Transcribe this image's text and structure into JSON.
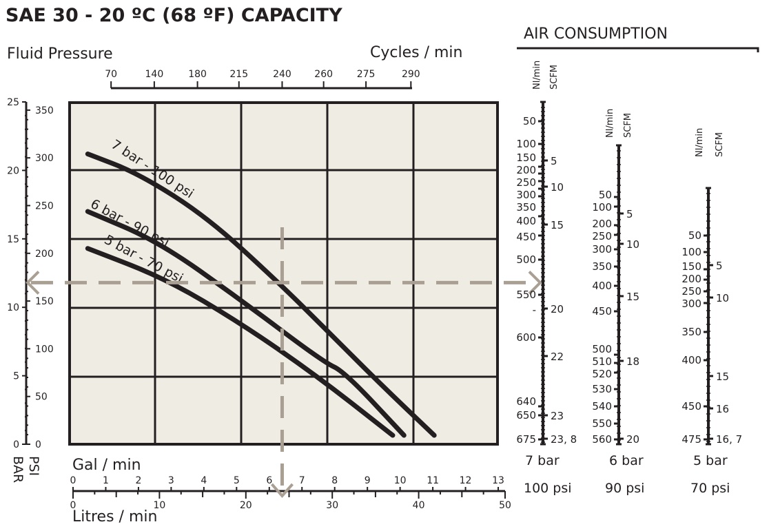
{
  "chart_data": {
    "type": "line",
    "title": "SAE 30 - 20 ºC (68 ºF) CAPACITY",
    "ylabel": "Fluid Pressure",
    "ylabel_units": [
      "BAR",
      "PSI"
    ],
    "x2label": "Cycles / min",
    "xlabel_gal": "Gal / min",
    "xlabel_litres": "Litres / min",
    "ylim_bar": [
      0,
      25
    ],
    "xlim_litres": [
      0,
      50
    ],
    "grid": true,
    "bar_ticks": [
      "0",
      "5",
      "10",
      "15",
      "20",
      "25"
    ],
    "psi_ticks": [
      "0",
      "50",
      "100",
      "150",
      "200",
      "250",
      "300",
      "350"
    ],
    "cycles_ticks": [
      {
        "label": "70",
        "litres": 4.4
      },
      {
        "label": "140",
        "litres": 9.4
      },
      {
        "label": "180",
        "litres": 14.4
      },
      {
        "label": "215",
        "litres": 19.2
      },
      {
        "label": "240",
        "litres": 24.2
      },
      {
        "label": "260",
        "litres": 29.0
      },
      {
        "label": "275",
        "litres": 33.9
      },
      {
        "label": "290",
        "litres": 39.1
      }
    ],
    "gal_ticks": [
      "0",
      "1",
      "2",
      "3",
      "4",
      "5",
      "6",
      "7",
      "8",
      "9",
      "10",
      "11",
      "12",
      "13"
    ],
    "litres_ticks": [
      "0",
      "10",
      "20",
      "30",
      "40",
      "50"
    ],
    "series": [
      {
        "name": "7 bar - 100 psi",
        "litres": [
          1.7,
          7.5,
          15.5,
          23.8,
          29.4,
          35.4,
          41.8
        ],
        "bar": [
          21.2,
          19.8,
          16.6,
          11.8,
          8.3,
          4.5,
          0.65
        ]
      },
      {
        "name": "6 bar - 90 psi",
        "litres": [
          1.7,
          9.9,
          19.5,
          29.0,
          31.4,
          38.3
        ],
        "bar": [
          17.0,
          14.8,
          10.5,
          6.0,
          5.3,
          0.65
        ]
      },
      {
        "name": "5 bar - 70 psi",
        "litres": [
          1.7,
          10.7,
          19.5,
          28.2,
          37.0
        ],
        "bar": [
          14.3,
          12.1,
          8.8,
          5.0,
          0.65
        ]
      }
    ],
    "example_reading": {
      "bar": 11.8,
      "litres": 24.2
    }
  },
  "air": {
    "title": "AIR CONSUMPTION",
    "nl_label": "Nl/min",
    "scfm_label": "SCFM",
    "scales": [
      {
        "bar": "7 bar",
        "psi": "100 psi",
        "nl": [
          "50",
          "100",
          "150",
          "200",
          "250",
          "300",
          "350",
          "400",
          "450",
          "500",
          "550",
          "-",
          "600",
          "640",
          "650",
          "675"
        ],
        "scfm": [
          "5",
          "10",
          "15",
          "20",
          "22",
          "23",
          "23, 8"
        ]
      },
      {
        "bar": "6 bar",
        "psi": "90 psi",
        "nl": [
          "50",
          "100",
          "200",
          "250",
          "300",
          "350",
          "400",
          "450",
          "500",
          "510",
          "520",
          "530",
          "540",
          "550",
          "560"
        ],
        "scfm": [
          "5",
          "10",
          "15",
          "18",
          "20"
        ]
      },
      {
        "bar": "5 bar",
        "psi": "70 psi",
        "nl": [
          "50",
          "100",
          "150",
          "200",
          "250",
          "300",
          "350",
          "400",
          "450",
          "475"
        ],
        "scfm": [
          "5",
          "10",
          "15",
          "16",
          "16, 7"
        ]
      }
    ]
  },
  "colors": {
    "plot_bg": "#efece4",
    "ink": "#231f20",
    "arrow": "#a99f92"
  }
}
